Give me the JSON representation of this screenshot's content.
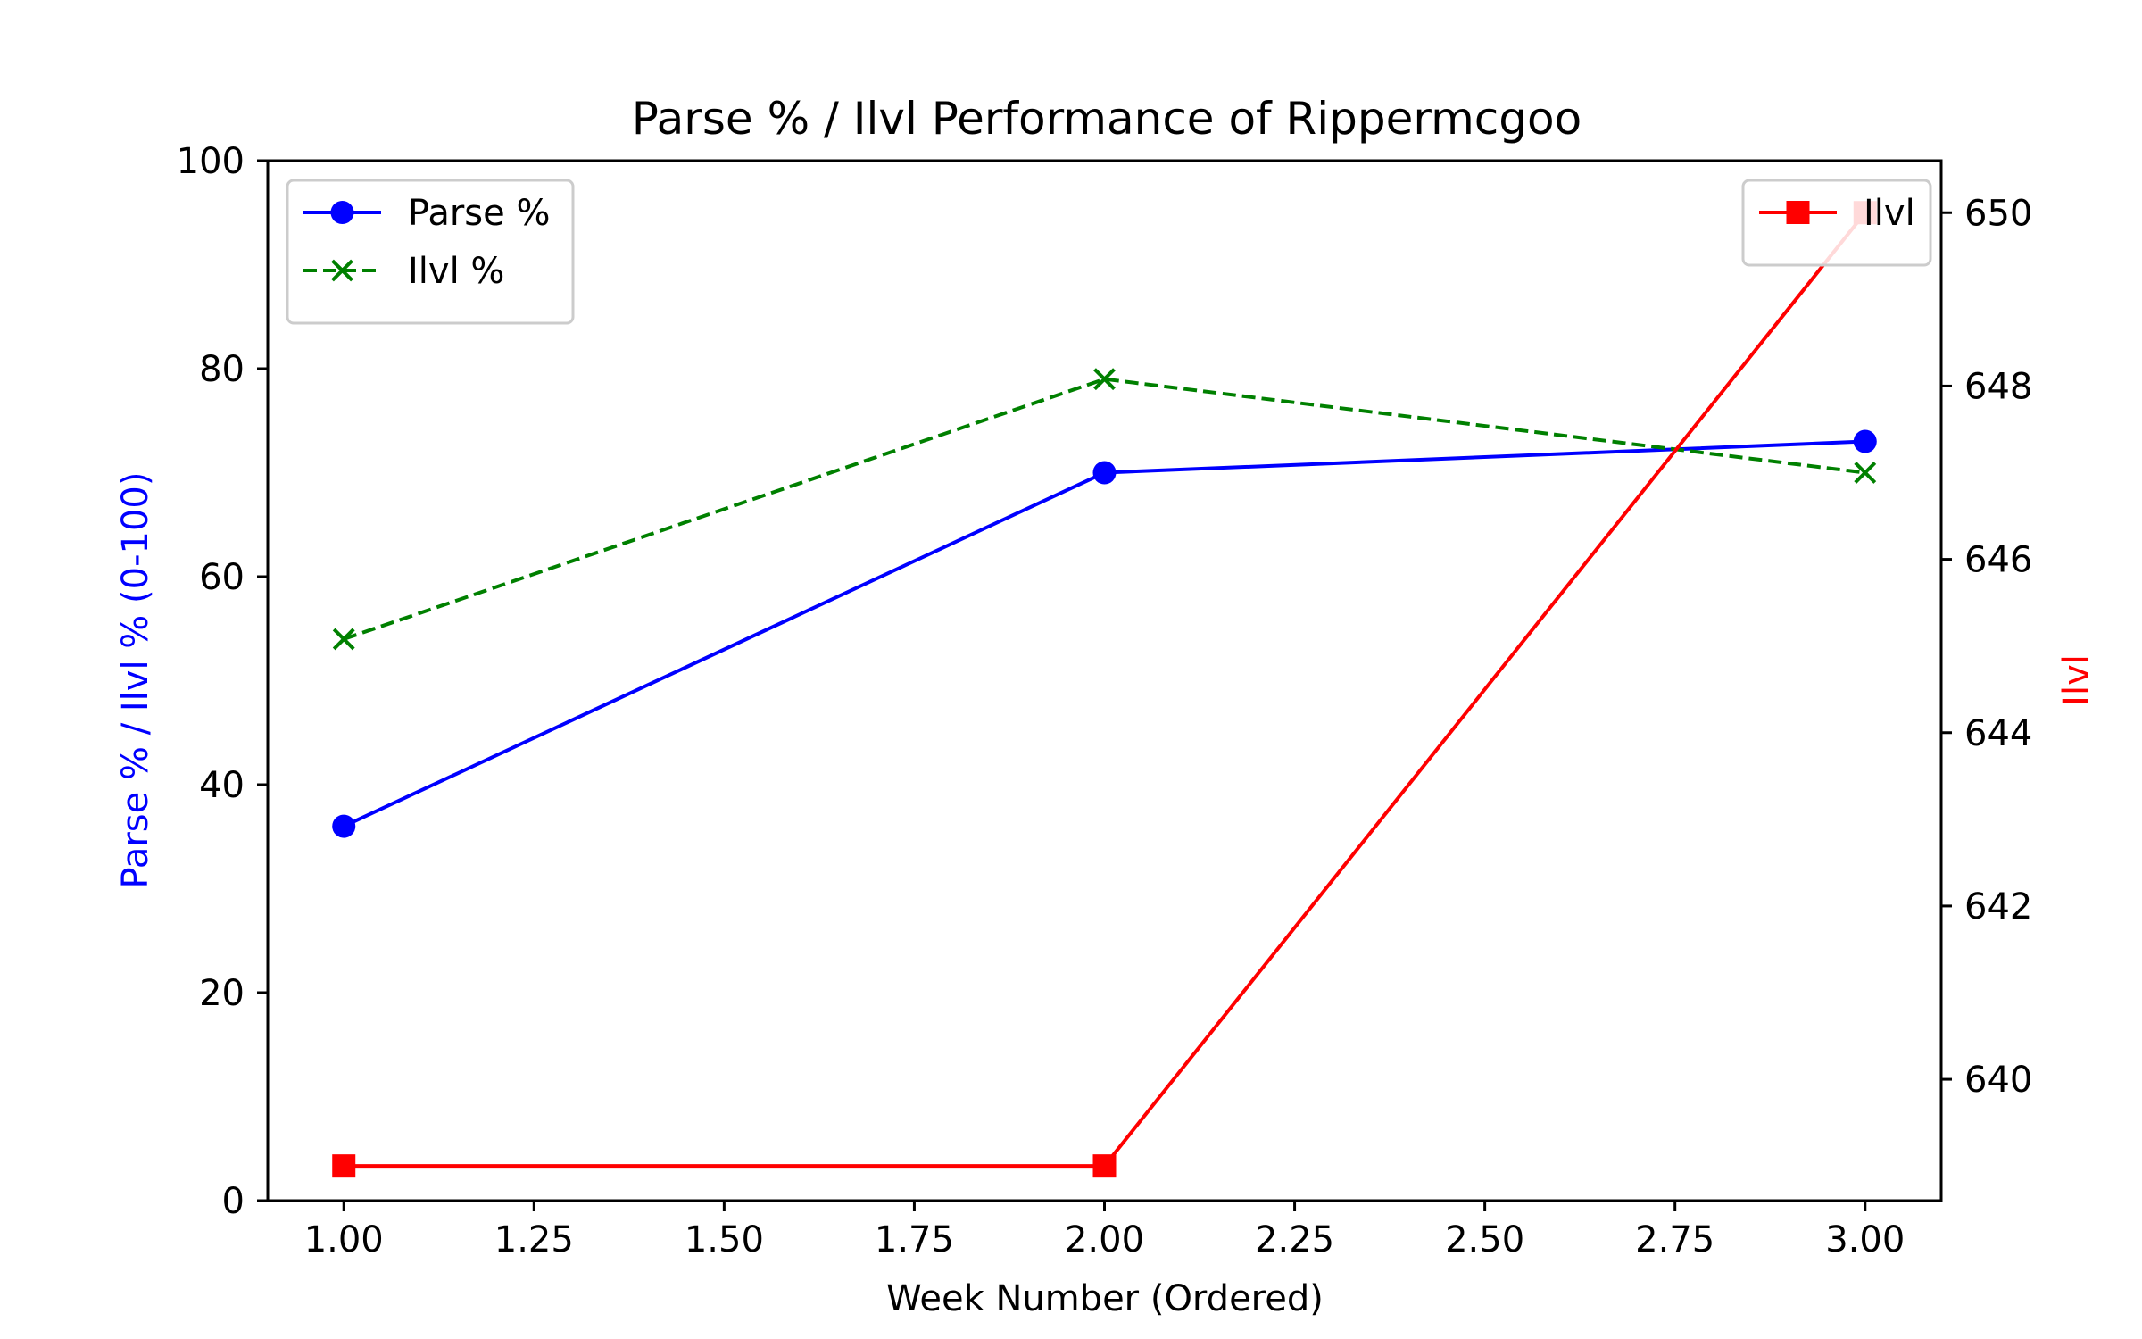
{
  "chart_data": {
    "type": "line",
    "title": "Parse % / Ilvl Performance of Rippermcgoo",
    "xlabel": "Week Number (Ordered)",
    "ylabel_left": "Parse % / Ilvl % (0-100)",
    "ylabel_right": "Ilvl",
    "x": [
      1.0,
      2.0,
      3.0
    ],
    "x_ticks": [
      "1.00",
      "1.25",
      "1.50",
      "1.75",
      "2.00",
      "2.25",
      "2.50",
      "2.75",
      "3.00"
    ],
    "y_left_ticks": [
      "0",
      "20",
      "40",
      "60",
      "80",
      "100"
    ],
    "y_right_ticks": [
      "640",
      "642",
      "644",
      "646",
      "648",
      "650"
    ],
    "xlim": [
      0.9,
      3.1
    ],
    "ylim_left": [
      0,
      100
    ],
    "ylim_right": [
      638.6,
      650.6
    ],
    "grid": false,
    "series": [
      {
        "name": "Parse %",
        "axis": "left",
        "values": [
          36,
          70,
          73
        ],
        "color": "#0000ff",
        "marker": "circle",
        "dash": "solid"
      },
      {
        "name": "Ilvl %",
        "axis": "left",
        "values": [
          54,
          79,
          70
        ],
        "color": "#008000",
        "marker": "x",
        "dash": "dashed"
      },
      {
        "name": "Ilvl",
        "axis": "right",
        "values": [
          639,
          639,
          650
        ],
        "color": "#ff0000",
        "marker": "square",
        "dash": "solid"
      }
    ],
    "legend_left": {
      "placement": "upper-left",
      "entries": [
        "Parse %",
        "Ilvl %"
      ]
    },
    "legend_right": {
      "placement": "upper-right",
      "entries": [
        "Ilvl"
      ]
    },
    "colors": {
      "left_axis_label": "#0000ff",
      "right_axis_label": "#ff0000",
      "axes": "#000000"
    }
  }
}
